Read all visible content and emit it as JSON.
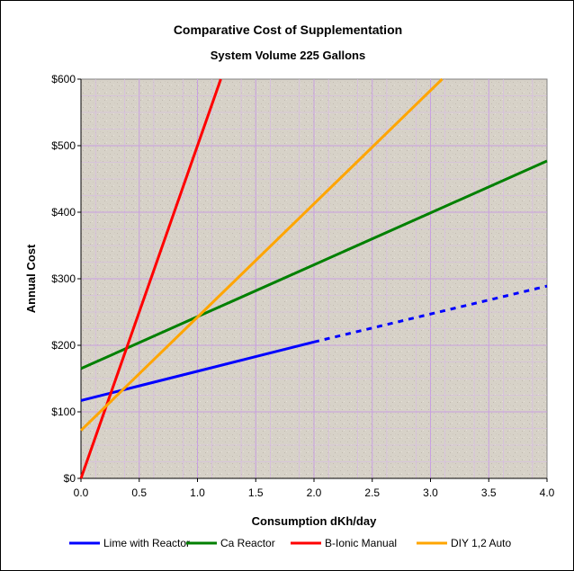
{
  "chart_data": {
    "type": "line",
    "title": "Comparative Cost of Supplementation",
    "subtitle": "System Volume 225 Gallons",
    "xlabel": "Consumption dKh/day",
    "ylabel": "Annual Cost",
    "xlim": [
      0,
      4.0
    ],
    "ylim": [
      0,
      600
    ],
    "x_ticks": [
      "0.0",
      "0.5",
      "1.0",
      "1.5",
      "2.0",
      "2.5",
      "3.0",
      "3.5",
      "4.0"
    ],
    "x_tick_values": [
      0,
      0.5,
      1.0,
      1.5,
      2.0,
      2.5,
      3.0,
      3.5,
      4.0
    ],
    "y_ticks": [
      "$0",
      "$100",
      "$200",
      "$300",
      "$400",
      "$500",
      "$600"
    ],
    "y_tick_values": [
      0,
      100,
      200,
      300,
      400,
      500,
      600
    ],
    "grid": true,
    "legend_position": "bottom",
    "series": [
      {
        "name": "Lime with Reactor",
        "color": "#0000ff",
        "x": [
          0,
          0.5,
          1.0,
          1.5,
          2.0
        ],
        "y": [
          117,
          139,
          161,
          183,
          205
        ],
        "extension": {
          "style": "dotted",
          "x": [
            2.0,
            4.0
          ],
          "y": [
            205,
            289
          ]
        }
      },
      {
        "name": "Ca Reactor",
        "color": "#008000",
        "x": [
          0,
          1.0,
          2.0,
          3.0,
          4.0
        ],
        "y": [
          165,
          243,
          321,
          399,
          477
        ]
      },
      {
        "name": "B-Ionic Manual",
        "color": "#ff0000",
        "x": [
          0,
          1.2
        ],
        "y": [
          0,
          600
        ]
      },
      {
        "name": "DIY 1,2 Auto",
        "color": "#ffa500",
        "x": [
          0,
          3.1
        ],
        "y": [
          72,
          600
        ]
      }
    ]
  }
}
